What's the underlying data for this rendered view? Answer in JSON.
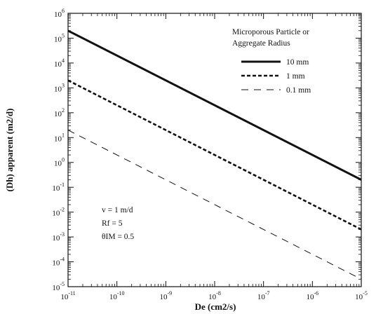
{
  "chart_data": {
    "type": "line",
    "title": "",
    "xlabel": "De (cm2/s)",
    "ylabel": "(Dh) apparent (m2/d)",
    "x_scale": "log",
    "y_scale": "log",
    "xlim": [
      1e-11,
      1e-05
    ],
    "ylim": [
      1e-05,
      1000000.0
    ],
    "grid": false,
    "x_ticks": [
      {
        "base": "10",
        "exp": "-11",
        "value": 1e-11
      },
      {
        "base": "10",
        "exp": "-10",
        "value": 1e-10
      },
      {
        "base": "10",
        "exp": "-9",
        "value": 1e-09
      },
      {
        "base": "10",
        "exp": "-8",
        "value": 1e-08
      },
      {
        "base": "10",
        "exp": "-7",
        "value": 1e-07
      },
      {
        "base": "10",
        "exp": "-6",
        "value": 1e-06
      },
      {
        "base": "10",
        "exp": "-5",
        "value": 1e-05
      }
    ],
    "y_ticks": [
      {
        "base": "10",
        "exp": "6",
        "value": 1000000.0
      },
      {
        "base": "10",
        "exp": "5",
        "value": 100000.0
      },
      {
        "base": "10",
        "exp": "4",
        "value": 10000.0
      },
      {
        "base": "10",
        "exp": "3",
        "value": 1000.0
      },
      {
        "base": "10",
        "exp": "2",
        "value": 100.0
      },
      {
        "base": "10",
        "exp": "1",
        "value": 10.0
      },
      {
        "base": "10",
        "exp": "0",
        "value": 1.0
      },
      {
        "base": "10",
        "exp": "-1",
        "value": 0.1
      },
      {
        "base": "10",
        "exp": "-2",
        "value": 0.01
      },
      {
        "base": "10",
        "exp": "-3",
        "value": 0.001
      },
      {
        "base": "10",
        "exp": "-4",
        "value": 0.0001
      },
      {
        "base": "10",
        "exp": "-5",
        "value": 1e-05
      }
    ],
    "legend": {
      "title_lines": [
        "Microporous Particle or",
        "Aggregate Radius"
      ],
      "placement": "top-right"
    },
    "series": [
      {
        "name": "10 mm",
        "style": "solid",
        "x": [
          1e-11,
          1e-05
        ],
        "y": [
          200000,
          0.2
        ]
      },
      {
        "name": "1 mm",
        "style": "dotted",
        "x": [
          1e-11,
          1e-05
        ],
        "y": [
          2000,
          0.002
        ]
      },
      {
        "name": "0.1 mm",
        "style": "dashed",
        "x": [
          1e-11,
          1e-05
        ],
        "y": [
          20,
          2e-05
        ]
      }
    ],
    "annotations": [
      "v = 1 m/d",
      "Rf = 5",
      "θIM = 0.5"
    ]
  }
}
